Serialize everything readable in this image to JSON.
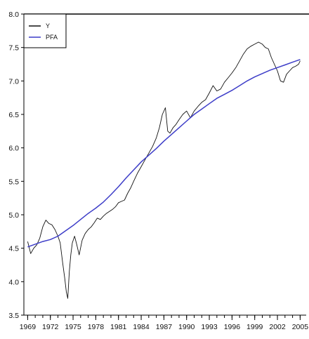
{
  "chart_data": {
    "type": "line",
    "title": "",
    "xlabel": "",
    "ylabel": "",
    "xlim": [
      1968.5,
      2005.8
    ],
    "ylim": [
      3.5,
      8.0
    ],
    "x_ticks": [
      1969,
      1972,
      1975,
      1978,
      1981,
      1984,
      1987,
      1990,
      1993,
      1996,
      1999,
      2002,
      2005
    ],
    "x_tick_labels": [
      "1969",
      "1972",
      "1975",
      "1978",
      "1981",
      "1984",
      "1987",
      "1990",
      "1993",
      "1996",
      "1999",
      "2002",
      "2005"
    ],
    "y_ticks": [
      3.5,
      4.0,
      4.5,
      5.0,
      5.5,
      6.0,
      6.5,
      7.0,
      7.5,
      8.0
    ],
    "y_tick_labels": [
      "3.5",
      "4.0",
      "4.5",
      "5.0",
      "5.5",
      "6.0",
      "6.5",
      "7.0",
      "7.5",
      "8.0"
    ],
    "grid": false,
    "legend": {
      "placement": "top-left"
    },
    "series": [
      {
        "name": "Y",
        "color": "#111111",
        "x": [
          1969.0,
          1969.4,
          1969.8,
          1970.2,
          1970.6,
          1971.0,
          1971.4,
          1971.8,
          1972.2,
          1972.6,
          1973.0,
          1973.3,
          1973.6,
          1973.9,
          1974.1,
          1974.3,
          1974.5,
          1974.7,
          1974.9,
          1975.2,
          1975.5,
          1975.8,
          1976.2,
          1976.6,
          1977.0,
          1977.4,
          1977.8,
          1978.2,
          1978.6,
          1979.0,
          1979.4,
          1979.8,
          1980.2,
          1980.6,
          1981.0,
          1981.4,
          1981.8,
          1982.2,
          1982.6,
          1983.0,
          1983.5,
          1984.0,
          1984.5,
          1985.0,
          1985.5,
          1986.0,
          1986.4,
          1986.8,
          1987.2,
          1987.5,
          1987.8,
          1988.2,
          1988.6,
          1989.0,
          1989.5,
          1990.0,
          1990.5,
          1991.0,
          1991.5,
          1992.0,
          1992.5,
          1993.0,
          1993.5,
          1994.0,
          1994.5,
          1995.0,
          1995.5,
          1996.0,
          1996.5,
          1997.0,
          1997.5,
          1998.0,
          1998.5,
          1999.0,
          1999.5,
          2000.0,
          2000.4,
          2000.8,
          2001.2,
          2001.6,
          2002.0,
          2002.4,
          2002.8,
          2003.2,
          2003.6,
          2004.0,
          2004.4,
          2004.8,
          2005.0
        ],
        "values": [
          4.6,
          4.42,
          4.5,
          4.55,
          4.65,
          4.82,
          4.92,
          4.87,
          4.85,
          4.78,
          4.68,
          4.58,
          4.3,
          4.05,
          3.85,
          3.75,
          4.15,
          4.4,
          4.58,
          4.68,
          4.55,
          4.4,
          4.62,
          4.72,
          4.78,
          4.82,
          4.88,
          4.95,
          4.93,
          4.98,
          5.02,
          5.05,
          5.08,
          5.12,
          5.18,
          5.2,
          5.22,
          5.32,
          5.4,
          5.5,
          5.62,
          5.72,
          5.82,
          5.92,
          6.02,
          6.15,
          6.3,
          6.5,
          6.6,
          6.25,
          6.22,
          6.3,
          6.35,
          6.42,
          6.5,
          6.55,
          6.45,
          6.55,
          6.62,
          6.68,
          6.72,
          6.82,
          6.93,
          6.85,
          6.88,
          6.98,
          7.05,
          7.12,
          7.2,
          7.3,
          7.4,
          7.48,
          7.52,
          7.55,
          7.58,
          7.55,
          7.5,
          7.48,
          7.35,
          7.25,
          7.15,
          7.0,
          6.98,
          7.1,
          7.15,
          7.2,
          7.22,
          7.25,
          7.3
        ]
      },
      {
        "name": "PFA",
        "color": "#3d3dc8",
        "x": [
          1969.0,
          1970.0,
          1971.0,
          1972.0,
          1973.0,
          1974.0,
          1975.0,
          1976.0,
          1977.0,
          1978.0,
          1979.0,
          1980.0,
          1981.0,
          1982.0,
          1983.0,
          1984.0,
          1985.0,
          1986.0,
          1987.0,
          1988.0,
          1989.0,
          1990.0,
          1991.0,
          1992.0,
          1993.0,
          1994.0,
          1995.0,
          1996.0,
          1997.0,
          1998.0,
          1999.0,
          2000.0,
          2001.0,
          2002.0,
          2003.0,
          2004.0,
          2005.0
        ],
        "values": [
          4.52,
          4.56,
          4.6,
          4.63,
          4.68,
          4.76,
          4.84,
          4.93,
          5.02,
          5.1,
          5.19,
          5.3,
          5.42,
          5.55,
          5.67,
          5.79,
          5.89,
          5.99,
          6.1,
          6.2,
          6.3,
          6.4,
          6.5,
          6.58,
          6.66,
          6.74,
          6.8,
          6.86,
          6.93,
          7.0,
          7.06,
          7.11,
          7.16,
          7.2,
          7.24,
          7.28,
          7.32
        ]
      }
    ]
  }
}
